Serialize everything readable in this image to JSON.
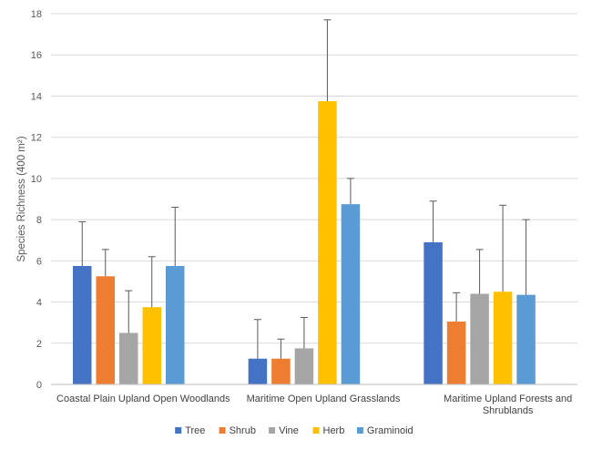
{
  "chart_data": {
    "type": "bar",
    "ylabel": "Species Richness (400 m²)",
    "ylim": [
      0,
      18
    ],
    "yticks": [
      0,
      2,
      4,
      6,
      8,
      10,
      12,
      14,
      16,
      18
    ],
    "grid": true,
    "legend_position": "bottom",
    "categories": [
      [
        "Coastal Plain Upland Open Woodlands"
      ],
      [
        "Maritime Open Upland Grasslands"
      ],
      [
        "Maritime Upland Forests and",
        "Shrublands"
      ]
    ],
    "series": [
      {
        "name": "Tree",
        "color": "#4472C4",
        "values": [
          5.75,
          1.25,
          6.9
        ],
        "error": [
          2.15,
          1.9,
          2.0
        ]
      },
      {
        "name": "Shrub",
        "color": "#ED7D31",
        "values": [
          5.25,
          1.25,
          3.05
        ],
        "error": [
          1.3,
          0.95,
          1.4
        ]
      },
      {
        "name": "Vine",
        "color": "#A5A5A5",
        "values": [
          2.5,
          1.75,
          4.4
        ],
        "error": [
          2.05,
          1.5,
          2.15
        ]
      },
      {
        "name": "Herb",
        "color": "#FFC000",
        "values": [
          3.75,
          13.75,
          4.5
        ],
        "error": [
          2.45,
          3.95,
          4.2
        ]
      },
      {
        "name": "Graminoid",
        "color": "#5B9BD5",
        "values": [
          5.75,
          8.75,
          4.35
        ],
        "error": [
          2.85,
          1.25,
          3.65
        ]
      }
    ]
  }
}
